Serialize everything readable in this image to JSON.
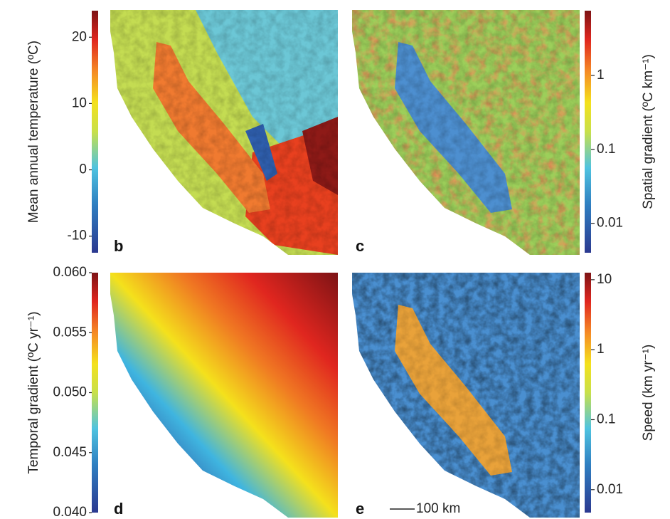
{
  "panels": [
    {
      "label": "b",
      "colorbar": {
        "title": "Mean annual temperature (ºC)",
        "scale": "linear",
        "lim": [
          -12.5,
          24
        ],
        "ticks": [
          20,
          10,
          0,
          -10
        ]
      }
    },
    {
      "label": "c",
      "colorbar": {
        "title": "Spatial gradient (ºC km⁻¹)",
        "scale": "log",
        "lim": [
          0.004,
          7.5
        ],
        "ticks": [
          1,
          0.1,
          0.01
        ]
      }
    },
    {
      "label": "d",
      "colorbar": {
        "title": "Temporal gradient (ºC yr⁻¹)",
        "scale": "linear",
        "lim": [
          0.04,
          0.06
        ],
        "ticks": [
          {
            "value": 0.06,
            "label": "0.060"
          },
          0.055,
          {
            "value": 0.05,
            "label": "0.050"
          },
          0.045,
          {
            "value": 0.04,
            "label": "0.040"
          }
        ]
      }
    },
    {
      "label": "e",
      "colorbar": {
        "title": "Speed (km yr⁻¹)",
        "scale": "log",
        "lim": [
          0.0047,
          12.6
        ],
        "ticks": [
          10,
          1,
          0.1,
          0.01
        ]
      }
    }
  ],
  "scale_bar": "100 km"
}
